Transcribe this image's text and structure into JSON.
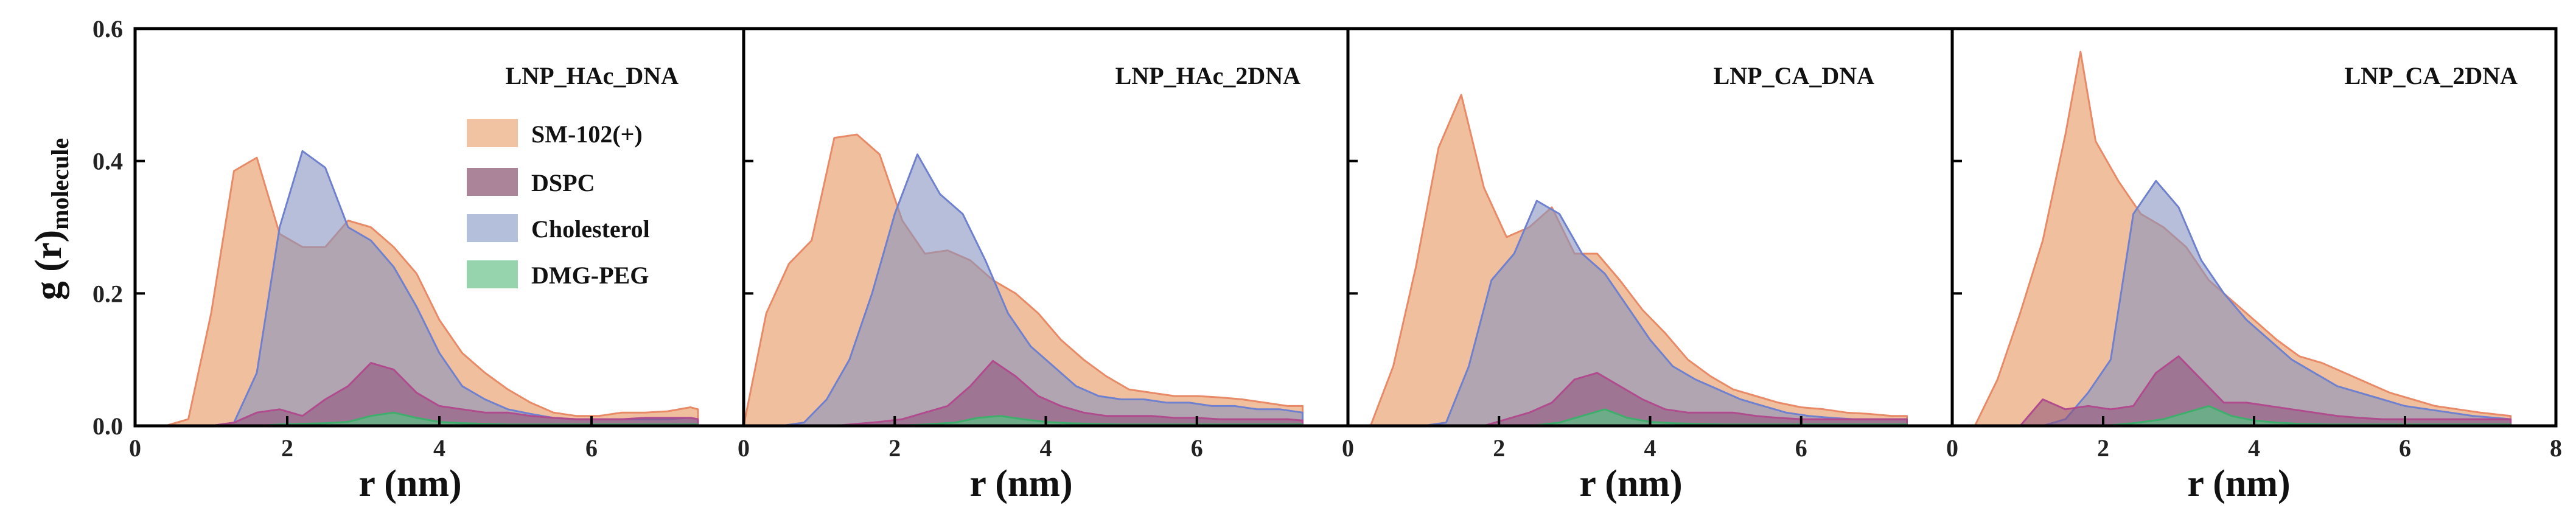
{
  "chart_data": {
    "type": "area",
    "ylabel": "g (r)",
    "ylabel_subscript": "molecule",
    "xlabel": "r (nm)",
    "xlim": [
      0,
      8
    ],
    "ylim": [
      0,
      0.6
    ],
    "xticks": [
      0,
      2,
      4,
      6,
      8
    ],
    "yticks": [
      0.0,
      0.2,
      0.4,
      0.6
    ],
    "x_tick_labels_by_panel": [
      [
        "0",
        "2",
        "4",
        "6"
      ],
      [
        "0",
        "2",
        "4",
        "6"
      ],
      [
        "0",
        "2",
        "4",
        "6"
      ],
      [
        "0",
        "2",
        "4",
        "6",
        "8"
      ]
    ],
    "y_tick_labels": [
      "0.0",
      "0.2",
      "0.4",
      "0.6"
    ],
    "legend": {
      "placement": "upper-right (first panel)",
      "entries": [
        {
          "name": "SM-102(+)",
          "color": "#eeb993"
        },
        {
          "name": "DSPC",
          "color": "#9c6f88"
        },
        {
          "name": "Cholesterol",
          "color": "#a7b4d6"
        },
        {
          "name": "DMG-PEG",
          "color": "#83cc9e"
        }
      ]
    },
    "series_styles": [
      {
        "name": "SM-102(+)",
        "fill": "#eeb993",
        "stroke": "#e88a68",
        "opacity": 0.9
      },
      {
        "name": "Cholesterol",
        "fill": "#8792c0",
        "stroke": "#6f80cf",
        "opacity": 0.6
      },
      {
        "name": "DSPC",
        "fill": "#8e4f78",
        "stroke": "#b04c8e",
        "opacity": 0.55
      },
      {
        "name": "DMG-PEG",
        "fill": "#5dbf85",
        "stroke": "#3fae6c",
        "opacity": 0.75
      }
    ],
    "panels": [
      {
        "title": "LNP_HAc_DNA",
        "series": [
          {
            "name": "SM-102(+)",
            "x": [
              0.4,
              0.7,
              1.0,
              1.3,
              1.6,
              1.9,
              2.2,
              2.5,
              2.8,
              3.1,
              3.4,
              3.7,
              4.0,
              4.3,
              4.6,
              4.9,
              5.2,
              5.5,
              5.8,
              6.1,
              6.4,
              6.7,
              7.0,
              7.3,
              7.4
            ],
            "values": [
              0.0,
              0.01,
              0.17,
              0.385,
              0.405,
              0.29,
              0.27,
              0.27,
              0.31,
              0.3,
              0.27,
              0.23,
              0.16,
              0.11,
              0.08,
              0.055,
              0.035,
              0.02,
              0.015,
              0.015,
              0.02,
              0.02,
              0.022,
              0.028,
              0.025
            ]
          },
          {
            "name": "Cholesterol",
            "x": [
              1.0,
              1.3,
              1.6,
              1.9,
              2.2,
              2.5,
              2.8,
              3.1,
              3.4,
              3.7,
              4.0,
              4.3,
              4.6,
              4.9,
              5.2,
              5.5,
              5.8,
              6.1,
              6.4,
              6.7,
              7.0,
              7.3,
              7.4
            ],
            "values": [
              0.0,
              0.005,
              0.08,
              0.3,
              0.415,
              0.39,
              0.3,
              0.28,
              0.24,
              0.18,
              0.11,
              0.06,
              0.04,
              0.025,
              0.018,
              0.012,
              0.01,
              0.01,
              0.01,
              0.01,
              0.01,
              0.012,
              0.01
            ]
          },
          {
            "name": "DSPC",
            "x": [
              1.0,
              1.3,
              1.6,
              1.9,
              2.2,
              2.5,
              2.8,
              3.1,
              3.4,
              3.7,
              4.0,
              4.3,
              4.6,
              4.9,
              5.2,
              5.5,
              5.8,
              6.1,
              6.4,
              6.7,
              7.0,
              7.3,
              7.4
            ],
            "values": [
              0.0,
              0.005,
              0.02,
              0.025,
              0.015,
              0.04,
              0.06,
              0.095,
              0.085,
              0.05,
              0.03,
              0.025,
              0.02,
              0.02,
              0.015,
              0.012,
              0.01,
              0.01,
              0.01,
              0.012,
              0.012,
              0.012,
              0.01
            ]
          },
          {
            "name": "DMG-PEG",
            "x": [
              1.6,
              1.9,
              2.2,
              2.5,
              2.8,
              3.1,
              3.4,
              3.7,
              4.0,
              4.3,
              4.6,
              4.9,
              5.2,
              5.5,
              5.8,
              6.1,
              6.4,
              6.7,
              7.0,
              7.3,
              7.4
            ],
            "values": [
              0.0,
              0.002,
              0.003,
              0.004,
              0.006,
              0.015,
              0.02,
              0.012,
              0.006,
              0.004,
              0.003,
              0.002,
              0.002,
              0.002,
              0.002,
              0.002,
              0.002,
              0.002,
              0.002,
              0.002,
              0.002
            ]
          }
        ]
      },
      {
        "title": "LNP_HAc_2DNA",
        "series": [
          {
            "name": "SM-102(+)",
            "x": [
              0.0,
              0.3,
              0.6,
              0.9,
              1.2,
              1.5,
              1.8,
              2.1,
              2.4,
              2.7,
              3.0,
              3.3,
              3.6,
              3.9,
              4.2,
              4.5,
              4.8,
              5.1,
              5.4,
              5.7,
              6.0,
              6.3,
              6.6,
              6.9,
              7.2,
              7.4
            ],
            "values": [
              0.0,
              0.17,
              0.245,
              0.28,
              0.435,
              0.44,
              0.41,
              0.31,
              0.26,
              0.265,
              0.25,
              0.22,
              0.2,
              0.17,
              0.13,
              0.1,
              0.075,
              0.055,
              0.05,
              0.045,
              0.045,
              0.043,
              0.04,
              0.035,
              0.03,
              0.03
            ]
          },
          {
            "name": "Cholesterol",
            "x": [
              0.5,
              0.8,
              1.1,
              1.4,
              1.7,
              2.0,
              2.3,
              2.6,
              2.9,
              3.2,
              3.5,
              3.8,
              4.1,
              4.4,
              4.7,
              5.0,
              5.3,
              5.6,
              5.9,
              6.2,
              6.5,
              6.8,
              7.1,
              7.4
            ],
            "values": [
              0.0,
              0.005,
              0.04,
              0.1,
              0.2,
              0.32,
              0.41,
              0.35,
              0.32,
              0.25,
              0.17,
              0.12,
              0.09,
              0.06,
              0.045,
              0.04,
              0.04,
              0.035,
              0.035,
              0.03,
              0.03,
              0.025,
              0.025,
              0.02
            ]
          },
          {
            "name": "DSPC",
            "x": [
              1.2,
              1.5,
              1.8,
              2.1,
              2.4,
              2.7,
              3.0,
              3.3,
              3.6,
              3.9,
              4.2,
              4.5,
              4.8,
              5.1,
              5.4,
              5.7,
              6.0,
              6.3,
              6.6,
              6.9,
              7.2,
              7.4
            ],
            "values": [
              0.0,
              0.003,
              0.006,
              0.01,
              0.02,
              0.03,
              0.06,
              0.098,
              0.075,
              0.045,
              0.03,
              0.02,
              0.015,
              0.015,
              0.015,
              0.012,
              0.012,
              0.01,
              0.01,
              0.01,
              0.01,
              0.008
            ]
          },
          {
            "name": "DMG-PEG",
            "x": [
              2.0,
              2.4,
              2.8,
              3.1,
              3.4,
              3.7,
              4.0,
              4.3,
              4.6,
              5.0,
              5.5,
              6.0,
              6.5,
              7.0,
              7.4
            ],
            "values": [
              0.0,
              0.002,
              0.005,
              0.012,
              0.015,
              0.01,
              0.006,
              0.004,
              0.003,
              0.002,
              0.002,
              0.002,
              0.002,
              0.002,
              0.002
            ]
          }
        ]
      },
      {
        "title": "LNP_CA_DNA",
        "series": [
          {
            "name": "SM-102(+)",
            "x": [
              0.3,
              0.6,
              0.9,
              1.2,
              1.5,
              1.8,
              2.1,
              2.4,
              2.7,
              3.0,
              3.3,
              3.6,
              3.9,
              4.2,
              4.5,
              4.8,
              5.1,
              5.4,
              5.7,
              6.0,
              6.3,
              6.6,
              6.9,
              7.2,
              7.4
            ],
            "values": [
              0.0,
              0.09,
              0.24,
              0.42,
              0.5,
              0.36,
              0.285,
              0.3,
              0.33,
              0.26,
              0.26,
              0.22,
              0.175,
              0.14,
              0.1,
              0.075,
              0.055,
              0.045,
              0.035,
              0.028,
              0.025,
              0.02,
              0.018,
              0.015,
              0.015
            ]
          },
          {
            "name": "Cholesterol",
            "x": [
              1.0,
              1.3,
              1.6,
              1.9,
              2.2,
              2.5,
              2.8,
              3.1,
              3.4,
              3.7,
              4.0,
              4.3,
              4.6,
              4.9,
              5.2,
              5.5,
              5.8,
              6.1,
              6.4,
              6.7,
              7.0,
              7.3,
              7.4
            ],
            "values": [
              0.0,
              0.005,
              0.09,
              0.22,
              0.26,
              0.34,
              0.32,
              0.26,
              0.23,
              0.18,
              0.13,
              0.09,
              0.07,
              0.055,
              0.04,
              0.03,
              0.02,
              0.015,
              0.012,
              0.01,
              0.01,
              0.01,
              0.01
            ]
          },
          {
            "name": "DSPC",
            "x": [
              1.8,
              2.1,
              2.4,
              2.7,
              3.0,
              3.3,
              3.6,
              3.9,
              4.2,
              4.5,
              4.8,
              5.1,
              5.4,
              5.7,
              6.0,
              6.3,
              6.6,
              6.9,
              7.2,
              7.4
            ],
            "values": [
              0.0,
              0.01,
              0.02,
              0.035,
              0.07,
              0.08,
              0.06,
              0.04,
              0.025,
              0.02,
              0.02,
              0.02,
              0.015,
              0.012,
              0.01,
              0.01,
              0.01,
              0.01,
              0.01,
              0.01
            ]
          },
          {
            "name": "DMG-PEG",
            "x": [
              2.4,
              2.8,
              3.1,
              3.4,
              3.7,
              4.0,
              4.3,
              4.6,
              5.0,
              5.5,
              6.0,
              6.5,
              7.0,
              7.4
            ],
            "values": [
              0.0,
              0.005,
              0.015,
              0.025,
              0.012,
              0.006,
              0.004,
              0.003,
              0.002,
              0.002,
              0.002,
              0.002,
              0.002,
              0.002
            ]
          }
        ]
      },
      {
        "title": "LNP_CA_2DNA",
        "series": [
          {
            "name": "SM-102(+)",
            "x": [
              0.3,
              0.6,
              0.9,
              1.2,
              1.5,
              1.7,
              1.9,
              2.2,
              2.5,
              2.8,
              3.1,
              3.4,
              3.7,
              4.0,
              4.3,
              4.6,
              4.9,
              5.2,
              5.5,
              5.8,
              6.1,
              6.4,
              6.7,
              7.0,
              7.4
            ],
            "values": [
              0.0,
              0.07,
              0.17,
              0.28,
              0.44,
              0.565,
              0.43,
              0.37,
              0.32,
              0.3,
              0.27,
              0.22,
              0.19,
              0.16,
              0.13,
              0.105,
              0.095,
              0.08,
              0.065,
              0.05,
              0.04,
              0.03,
              0.025,
              0.02,
              0.015
            ]
          },
          {
            "name": "Cholesterol",
            "x": [
              1.2,
              1.5,
              1.8,
              2.1,
              2.4,
              2.7,
              3.0,
              3.3,
              3.6,
              3.9,
              4.2,
              4.5,
              4.8,
              5.1,
              5.4,
              5.7,
              6.0,
              6.3,
              6.6,
              6.9,
              7.2,
              7.4
            ],
            "values": [
              0.0,
              0.01,
              0.05,
              0.1,
              0.32,
              0.37,
              0.33,
              0.25,
              0.2,
              0.16,
              0.13,
              0.1,
              0.08,
              0.06,
              0.05,
              0.04,
              0.03,
              0.025,
              0.02,
              0.015,
              0.012,
              0.01
            ]
          },
          {
            "name": "DSPC",
            "x": [
              0.9,
              1.2,
              1.5,
              1.8,
              2.1,
              2.4,
              2.7,
              3.0,
              3.3,
              3.6,
              3.9,
              4.2,
              4.5,
              4.8,
              5.1,
              5.4,
              5.7,
              6.0,
              6.3,
              6.6,
              6.9,
              7.2,
              7.4
            ],
            "values": [
              0.0,
              0.04,
              0.025,
              0.03,
              0.025,
              0.03,
              0.08,
              0.105,
              0.07,
              0.035,
              0.035,
              0.03,
              0.025,
              0.02,
              0.015,
              0.012,
              0.01,
              0.01,
              0.01,
              0.01,
              0.01,
              0.01,
              0.01
            ]
          },
          {
            "name": "DMG-PEG",
            "x": [
              2.0,
              2.4,
              2.8,
              3.1,
              3.4,
              3.7,
              4.0,
              4.3,
              4.6,
              5.0,
              5.5,
              6.0,
              6.5,
              7.0,
              7.4
            ],
            "values": [
              0.0,
              0.004,
              0.01,
              0.02,
              0.03,
              0.015,
              0.008,
              0.005,
              0.003,
              0.002,
              0.002,
              0.002,
              0.002,
              0.002,
              0.002
            ]
          }
        ]
      }
    ]
  }
}
